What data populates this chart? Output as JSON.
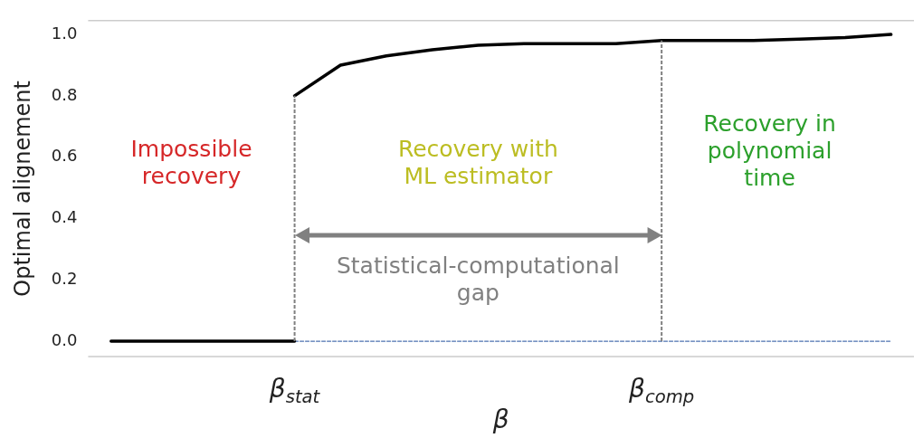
{
  "chart_data": {
    "type": "line",
    "xlabel": "β",
    "ylabel": "Optimal alignement",
    "categories": [
      null,
      null,
      null,
      null,
      "β$_{stat}$",
      null,
      null,
      null,
      null,
      null,
      null,
      null,
      "β$_{comp}$",
      null,
      null,
      null,
      null,
      null
    ],
    "series": [
      {
        "color": "#000000",
        "values": [
          0,
          0,
          0,
          0,
          0,
          null,
          null,
          null,
          null,
          null,
          null,
          null,
          null,
          null,
          null,
          null,
          null,
          null
        ]
      },
      {
        "color": "#000000",
        "values": [
          null,
          null,
          null,
          null,
          0.8,
          0.9,
          0.93,
          0.95,
          0.965,
          0.97,
          0.97,
          0.97,
          0.98,
          0.98,
          0.98,
          0.985,
          0.99,
          1.0
        ]
      },
      {
        "color": "#4c72b0",
        "line_style": "dashed",
        "values": [
          null,
          null,
          null,
          null,
          0,
          0,
          0,
          0,
          0,
          0,
          0,
          0,
          0,
          0,
          0,
          0,
          0,
          0
        ]
      }
    ],
    "ylim": [
      -0.05,
      1.045
    ],
    "yticks": [
      {
        "value": 0,
        "label": "0.0"
      },
      0.2,
      0.4,
      0.6,
      0.8,
      {
        "value": 1,
        "label": "1.0"
      }
    ],
    "grid": false,
    "legend": false,
    "marker": "none",
    "ref_lines": [
      {
        "axis": "x",
        "value": "β$_{stat}$",
        "color": "#808080",
        "line_style": "dashed"
      },
      {
        "axis": "x",
        "value": "β$_{comp}$",
        "color": "#808080",
        "line_style": "dashed"
      }
    ],
    "annotations": [
      "Impossible recovery",
      "Recovery with ML estimator",
      "Recovery in polynomial time",
      "Statistical-computational gap"
    ]
  }
}
